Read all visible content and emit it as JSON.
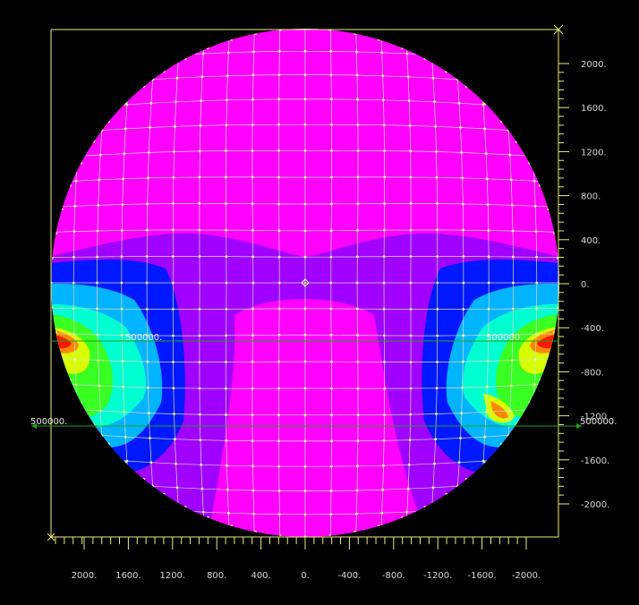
{
  "view": {
    "background": "#000000",
    "frame_color": "#e8f07a",
    "mesh_color": "#d8d8d8",
    "node_color": "#e6ff80",
    "load_line_color": "#1ca51c"
  },
  "right_axis": {
    "ticks": [
      "2000.",
      "1600.",
      "1200.",
      "800.",
      "400.",
      "0.",
      "-400.",
      "-800.",
      "-1200",
      "-1600.",
      "-2000."
    ]
  },
  "bottom_axis": {
    "ticks": [
      "2000.",
      "1600.",
      "1200.",
      "800.",
      "400.",
      "0.",
      "-400.",
      "-800.",
      "-1200.",
      "-1600.",
      "-2000."
    ]
  },
  "load_labels": {
    "left_upper": "500000.",
    "right_upper": "500000.",
    "left_lower": "500000.",
    "right_lower": "500000."
  },
  "contour_colors": {
    "high": "#ff00ff",
    "mid": "#a000ff",
    "low": "#0018ff",
    "lower": "#00b4ff",
    "cyan": "#00ffd0",
    "green": "#39ff22",
    "yellow": "#d8ff00",
    "orange": "#ff8800",
    "red": "#ff1800"
  }
}
